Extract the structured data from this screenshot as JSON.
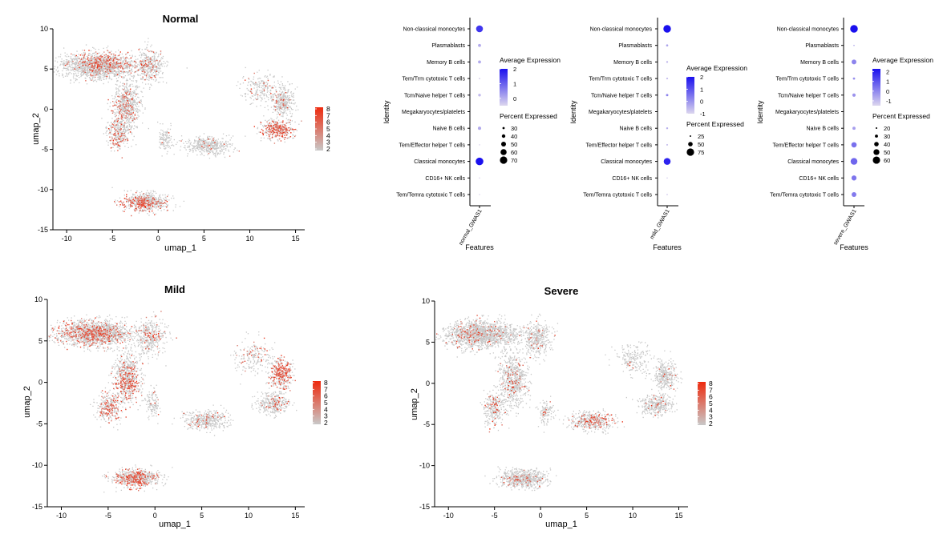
{
  "colors": {
    "expr_low": "#c8c8c8",
    "expr_high": "#ee2a0e",
    "dot_low": "#d8d0ec",
    "dot_high": "#1a10ee",
    "axis": "#000000"
  },
  "chart_data": [
    {
      "type": "scatter",
      "id": "umap_normal",
      "title": "Normal",
      "xlabel": "umap_1",
      "ylabel": "umap_2",
      "xlim": [
        -11.5,
        16
      ],
      "ylim": [
        -15,
        10
      ],
      "xticks": [
        -10,
        -5,
        0,
        5,
        10,
        15
      ],
      "yticks": [
        -15,
        -10,
        -5,
        0,
        5,
        10
      ],
      "legend": {
        "position": "right",
        "min": 2,
        "max": 8,
        "labels": [
          "8",
          "7",
          "6",
          "5",
          "4",
          "3",
          "2"
        ]
      },
      "clusters": [
        {
          "name": "top arm",
          "cx": -6.5,
          "cy": 5.5,
          "sx": 3.3,
          "sy": 1.3,
          "n": 1600,
          "expressed": 0.22,
          "hot_x": -4.5,
          "hot_y": 6.5
        },
        {
          "name": "top right",
          "cx": -1,
          "cy": 5.5,
          "sx": 1.3,
          "sy": 1.7,
          "n": 400,
          "expressed": 0.1,
          "hot_x": -1,
          "hot_y": 6
        },
        {
          "name": "stem",
          "cx": -3.5,
          "cy": 0.5,
          "sx": 1.2,
          "sy": 2.5,
          "n": 700,
          "expressed": 0.15,
          "hot_x": -4,
          "hot_y": -1
        },
        {
          "name": "bottom left",
          "cx": -4.5,
          "cy": -3,
          "sx": 1.0,
          "sy": 1.5,
          "n": 300,
          "expressed": 0.25,
          "hot_x": -5,
          "hot_y": -4
        },
        {
          "name": "small",
          "cx": 0.7,
          "cy": -3.5,
          "sx": 0.6,
          "sy": 1.2,
          "n": 120,
          "expressed": 0.05,
          "hot_x": 0,
          "hot_y": -3
        },
        {
          "name": "center",
          "cx": 5.5,
          "cy": -4.5,
          "sx": 2.0,
          "sy": 0.9,
          "n": 450,
          "expressed": 0.03,
          "hot_x": 5,
          "hot_y": -4
        },
        {
          "name": "right top",
          "cx": 13.5,
          "cy": 1.0,
          "sx": 1.0,
          "sy": 1.5,
          "n": 350,
          "expressed": 0.05,
          "hot_x": 13,
          "hot_y": 1
        },
        {
          "name": "right tail",
          "cx": 11,
          "cy": 2.5,
          "sx": 1.5,
          "sy": 1.5,
          "n": 200,
          "expressed": 0.05,
          "hot_x": 11,
          "hot_y": 3
        },
        {
          "name": "right bottom",
          "cx": 13,
          "cy": -2.5,
          "sx": 1.4,
          "sy": 1.0,
          "n": 350,
          "expressed": 0.45,
          "hot_x": 13,
          "hot_y": -2.5
        },
        {
          "name": "lower",
          "cx": -1.5,
          "cy": -11.5,
          "sx": 2.0,
          "sy": 0.9,
          "n": 650,
          "expressed": 0.3,
          "hot_x": -3,
          "hot_y": -12
        }
      ]
    },
    {
      "type": "scatter",
      "id": "umap_mild",
      "title": "Mild",
      "xlabel": "umap_1",
      "ylabel": "umap_2",
      "xlim": [
        -11.5,
        16
      ],
      "ylim": [
        -15,
        10
      ],
      "xticks": [
        -10,
        -5,
        0,
        5,
        10,
        15
      ],
      "yticks": [
        -15,
        -10,
        -5,
        0,
        5,
        10
      ],
      "legend": {
        "position": "right",
        "min": 2,
        "max": 8,
        "labels": [
          "8",
          "7",
          "6",
          "5",
          "4",
          "3",
          "2"
        ]
      },
      "clusters": [
        {
          "name": "top arm",
          "cx": -6.5,
          "cy": 6.0,
          "sx": 3.3,
          "sy": 1.3,
          "n": 1600,
          "expressed": 0.22,
          "hot_x": -7.5,
          "hot_y": 6
        },
        {
          "name": "top right",
          "cx": -0.5,
          "cy": 5.5,
          "sx": 1.3,
          "sy": 1.7,
          "n": 400,
          "expressed": 0.12,
          "hot_x": 0,
          "hot_y": 6
        },
        {
          "name": "stem",
          "cx": -3.0,
          "cy": 0.5,
          "sx": 1.2,
          "sy": 2.5,
          "n": 700,
          "expressed": 0.28,
          "hot_x": -3,
          "hot_y": -1
        },
        {
          "name": "bottom left",
          "cx": -5.0,
          "cy": -3,
          "sx": 1.0,
          "sy": 1.5,
          "n": 300,
          "expressed": 0.35,
          "hot_x": -5,
          "hot_y": -3.5
        },
        {
          "name": "small",
          "cx": -0.3,
          "cy": -2.5,
          "sx": 0.6,
          "sy": 1.5,
          "n": 120,
          "expressed": 0.05,
          "hot_x": 0,
          "hot_y": -3
        },
        {
          "name": "center",
          "cx": 5.5,
          "cy": -4.5,
          "sx": 2.0,
          "sy": 0.9,
          "n": 450,
          "expressed": 0.08,
          "hot_x": 5,
          "hot_y": -4
        },
        {
          "name": "right top",
          "cx": 13.5,
          "cy": 1.0,
          "sx": 1.0,
          "sy": 1.5,
          "n": 350,
          "expressed": 0.45,
          "hot_x": 13.5,
          "hot_y": 1
        },
        {
          "name": "right tail",
          "cx": 10.5,
          "cy": 3.0,
          "sx": 1.5,
          "sy": 1.5,
          "n": 200,
          "expressed": 0.1,
          "hot_x": 11,
          "hot_y": 3.5
        },
        {
          "name": "right bottom",
          "cx": 12.5,
          "cy": -2.5,
          "sx": 1.4,
          "sy": 1.0,
          "n": 350,
          "expressed": 0.1,
          "hot_x": 13,
          "hot_y": -2.5
        },
        {
          "name": "lower",
          "cx": -2.0,
          "cy": -11.5,
          "sx": 2.0,
          "sy": 0.9,
          "n": 650,
          "expressed": 0.35,
          "hot_x": -3,
          "hot_y": -12
        }
      ]
    },
    {
      "type": "scatter",
      "id": "umap_severe",
      "title": "Severe",
      "xlabel": "umap_1",
      "ylabel": "umap_2",
      "xlim": [
        -11.5,
        16
      ],
      "ylim": [
        -15,
        10
      ],
      "xticks": [
        -10,
        -5,
        0,
        5,
        10,
        15
      ],
      "yticks": [
        -15,
        -10,
        -5,
        0,
        5,
        10
      ],
      "legend": {
        "position": "right",
        "min": 2,
        "max": 8,
        "labels": [
          "8",
          "7",
          "6",
          "5",
          "4",
          "3",
          "2"
        ]
      },
      "clusters": [
        {
          "name": "top arm",
          "cx": -6.5,
          "cy": 6.0,
          "sx": 3.3,
          "sy": 1.3,
          "n": 1600,
          "expressed": 0.08,
          "hot_x": -8,
          "hot_y": 6
        },
        {
          "name": "top right",
          "cx": -0.5,
          "cy": 5.5,
          "sx": 1.3,
          "sy": 1.7,
          "n": 400,
          "expressed": 0.06,
          "hot_x": 0,
          "hot_y": 6
        },
        {
          "name": "stem",
          "cx": -3.0,
          "cy": 0.5,
          "sx": 1.2,
          "sy": 2.5,
          "n": 700,
          "expressed": 0.08,
          "hot_x": -3,
          "hot_y": 0
        },
        {
          "name": "bottom left",
          "cx": -5.0,
          "cy": -3,
          "sx": 1.0,
          "sy": 1.5,
          "n": 300,
          "expressed": 0.1,
          "hot_x": -5,
          "hot_y": -3.5
        },
        {
          "name": "small",
          "cx": 0.5,
          "cy": -3.5,
          "sx": 0.6,
          "sy": 1.2,
          "n": 120,
          "expressed": 0.1,
          "hot_x": 0.5,
          "hot_y": -4
        },
        {
          "name": "center",
          "cx": 5.5,
          "cy": -4.5,
          "sx": 2.0,
          "sy": 0.9,
          "n": 450,
          "expressed": 0.22,
          "hot_x": 6,
          "hot_y": -4
        },
        {
          "name": "right top",
          "cx": 13.5,
          "cy": 1.0,
          "sx": 1.0,
          "sy": 1.5,
          "n": 350,
          "expressed": 0.03,
          "hot_x": 13.5,
          "hot_y": 1
        },
        {
          "name": "right tail",
          "cx": 10.0,
          "cy": 3.0,
          "sx": 1.5,
          "sy": 1.5,
          "n": 200,
          "expressed": 0.08,
          "hot_x": 8.5,
          "hot_y": 1
        },
        {
          "name": "right bottom",
          "cx": 12.5,
          "cy": -2.5,
          "sx": 1.4,
          "sy": 1.0,
          "n": 350,
          "expressed": 0.03,
          "hot_x": 13,
          "hot_y": -2.5
        },
        {
          "name": "lower",
          "cx": -2.0,
          "cy": -11.5,
          "sx": 2.0,
          "sy": 0.9,
          "n": 650,
          "expressed": 0.12,
          "hot_x": -3,
          "hot_y": -12
        }
      ]
    },
    {
      "type": "dotplot",
      "id": "dot_normal",
      "feature": "normal_GWAS1",
      "xlabel": "Features",
      "ylabel": "Identity",
      "identities": [
        "Non-classical monocytes",
        "Plasmablasts",
        "Memory B cells",
        "Tem/Trm cytotoxic T cells",
        "Tcm/Naive helper T cells",
        "Megakaryocytes/platelets",
        "Naive B cells",
        "Tem/Effector helper T cells",
        "Classical monocytes",
        "CD16+ NK cells",
        "Tem/Temra cytotoxic T cells"
      ],
      "avg_expression": [
        1.5,
        0.0,
        0.0,
        -0.5,
        -0.2,
        null,
        0.0,
        -0.6,
        2.0,
        -0.8,
        -0.8
      ],
      "pct_expressed": [
        66,
        36,
        36,
        24,
        34,
        null,
        38,
        22,
        72,
        22,
        22
      ],
      "color_legend": {
        "title": "Average Expression",
        "min": -0.5,
        "max": 2,
        "ticks": [
          "2",
          "1",
          "0"
        ],
        "tick_values": [
          2,
          1,
          0
        ]
      },
      "size_legend": {
        "title": "Percent Expressed",
        "labels": [
          "30",
          "40",
          "50",
          "60",
          "70"
        ],
        "values": [
          30,
          40,
          50,
          60,
          70
        ]
      },
      "size_range": [
        20,
        75
      ]
    },
    {
      "type": "dotplot",
      "id": "dot_mild",
      "feature": "mild_GWAS1",
      "xlabel": "Features",
      "ylabel": "Identity",
      "identities": [
        "Non-classical monocytes",
        "Plasmablasts",
        "Memory B cells",
        "Tem/Trm cytotoxic T cells",
        "Tcm/Naive helper T cells",
        "Megakaryocytes/platelets",
        "Naive B cells",
        "Tem/Effector helper T cells",
        "Classical monocytes",
        "CD16+ NK cells",
        "Tem/Temra cytotoxic T cells"
      ],
      "avg_expression": [
        2.0,
        -0.3,
        -0.6,
        -0.6,
        0.2,
        null,
        -0.5,
        -0.7,
        1.7,
        -0.9,
        -0.9
      ],
      "pct_expressed": [
        76,
        30,
        28,
        26,
        32,
        null,
        28,
        26,
        70,
        22,
        24
      ],
      "color_legend": {
        "title": "Average Expression",
        "min": -1,
        "max": 2,
        "ticks": [
          "2",
          "1",
          "0",
          "-1"
        ],
        "tick_values": [
          2,
          1,
          0,
          -1
        ]
      },
      "size_legend": {
        "title": "Percent Expressed",
        "labels": [
          "25",
          "50",
          "75"
        ],
        "values": [
          25,
          50,
          75
        ]
      },
      "size_range": [
        20,
        80
      ]
    },
    {
      "type": "dotplot",
      "id": "dot_severe",
      "feature": "severe_GWAS1",
      "xlabel": "Features",
      "ylabel": "Identity",
      "identities": [
        "Non-classical monocytes",
        "Plasmablasts",
        "Memory B cells",
        "Tem/Trm cytotoxic T cells",
        "Tcm/Naive helper T cells",
        "Megakaryocytes/platelets",
        "Naive B cells",
        "Tem/Effector helper T cells",
        "Classical monocytes",
        "CD16+ NK cells",
        "Tem/Temra cytotoxic T cells"
      ],
      "avg_expression": [
        2.3,
        -0.8,
        0.0,
        -0.2,
        -0.3,
        null,
        -0.5,
        0.4,
        0.6,
        0.3,
        0.2
      ],
      "pct_expressed": [
        62,
        18,
        42,
        24,
        32,
        null,
        30,
        46,
        56,
        44,
        42
      ],
      "color_legend": {
        "title": "Average Expression",
        "min": -1.5,
        "max": 2.3,
        "ticks": [
          "2",
          "1",
          "0",
          "-1"
        ],
        "tick_values": [
          2,
          1,
          0,
          -1
        ]
      },
      "size_legend": {
        "title": "Percent Expressed",
        "labels": [
          "20",
          "30",
          "40",
          "50",
          "60"
        ],
        "values": [
          20,
          30,
          40,
          50,
          60
        ]
      },
      "size_range": [
        15,
        65
      ]
    }
  ]
}
